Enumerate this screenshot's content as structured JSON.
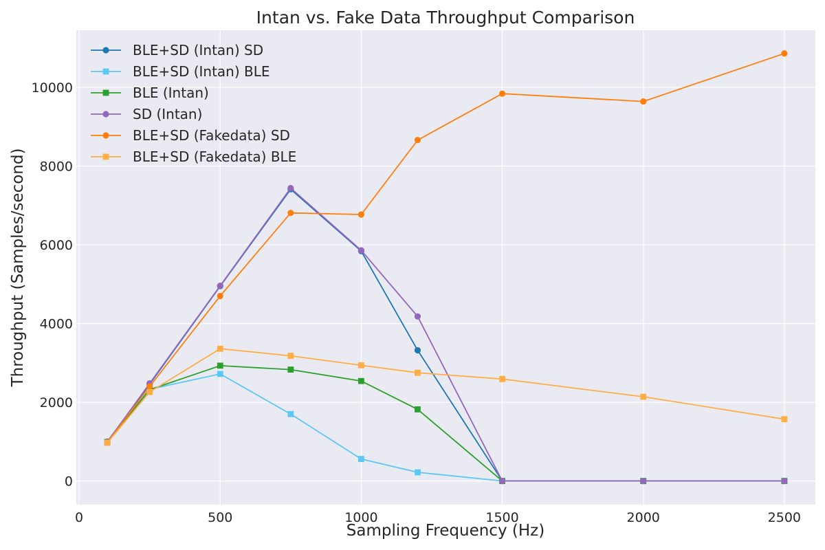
{
  "chart_data": {
    "type": "line",
    "title": "Intan vs. Fake Data Throughput Comparison",
    "xlabel": "Sampling Frequency (Hz)",
    "ylabel": "Throughput (Samples/second)",
    "xlim": [
      -10,
      2610
    ],
    "ylim": [
      -600,
      11450
    ],
    "xticks": [
      0,
      500,
      1000,
      1500,
      2000,
      2500
    ],
    "yticks": [
      0,
      2000,
      4000,
      6000,
      8000,
      10000
    ],
    "grid": true,
    "legend_position": "top-left",
    "background_color": "#eaeaf2",
    "series": [
      {
        "name": "BLE+SD (Intan) SD",
        "color": "#1f77b4",
        "marker": "circle",
        "x": [
          100,
          250,
          500,
          750,
          1000,
          1200,
          1500,
          2000,
          2500
        ],
        "y": [
          1000,
          2460,
          4950,
          7410,
          5840,
          3320,
          0,
          0,
          0
        ]
      },
      {
        "name": "BLE+SD (Intan) BLE",
        "color": "#5bc8f5",
        "marker": "square",
        "x": [
          100,
          250,
          500,
          750,
          1000,
          1200,
          1500,
          2000,
          2500
        ],
        "y": [
          990,
          2330,
          2720,
          1700,
          560,
          220,
          0,
          0,
          0
        ]
      },
      {
        "name": "BLE (Intan)",
        "color": "#2ca02c",
        "marker": "square",
        "x": [
          100,
          250,
          500,
          750,
          1000,
          1200,
          1500,
          2000,
          2500
        ],
        "y": [
          990,
          2320,
          2930,
          2830,
          2540,
          1820,
          0,
          0,
          0
        ]
      },
      {
        "name": "SD (Intan)",
        "color": "#9467bd",
        "marker": "circle",
        "x": [
          100,
          250,
          500,
          750,
          1000,
          1200,
          1500,
          2000,
          2500
        ],
        "y": [
          990,
          2480,
          4960,
          7440,
          5860,
          4180,
          0,
          0,
          0
        ]
      },
      {
        "name": "BLE+SD (Fakedata) SD",
        "color": "#ff7f0e",
        "marker": "circle",
        "x": [
          100,
          250,
          500,
          750,
          1000,
          1200,
          1500,
          2000,
          2500
        ],
        "y": [
          980,
          2400,
          4700,
          6810,
          6770,
          8660,
          9840,
          9640,
          10860
        ]
      },
      {
        "name": "BLE+SD (Fakedata) BLE",
        "color": "#ffad47",
        "marker": "square",
        "x": [
          100,
          250,
          500,
          750,
          1000,
          1200,
          1500,
          2000,
          2500
        ],
        "y": [
          970,
          2260,
          3360,
          3180,
          2940,
          2750,
          2590,
          2140,
          1570
        ]
      }
    ]
  }
}
